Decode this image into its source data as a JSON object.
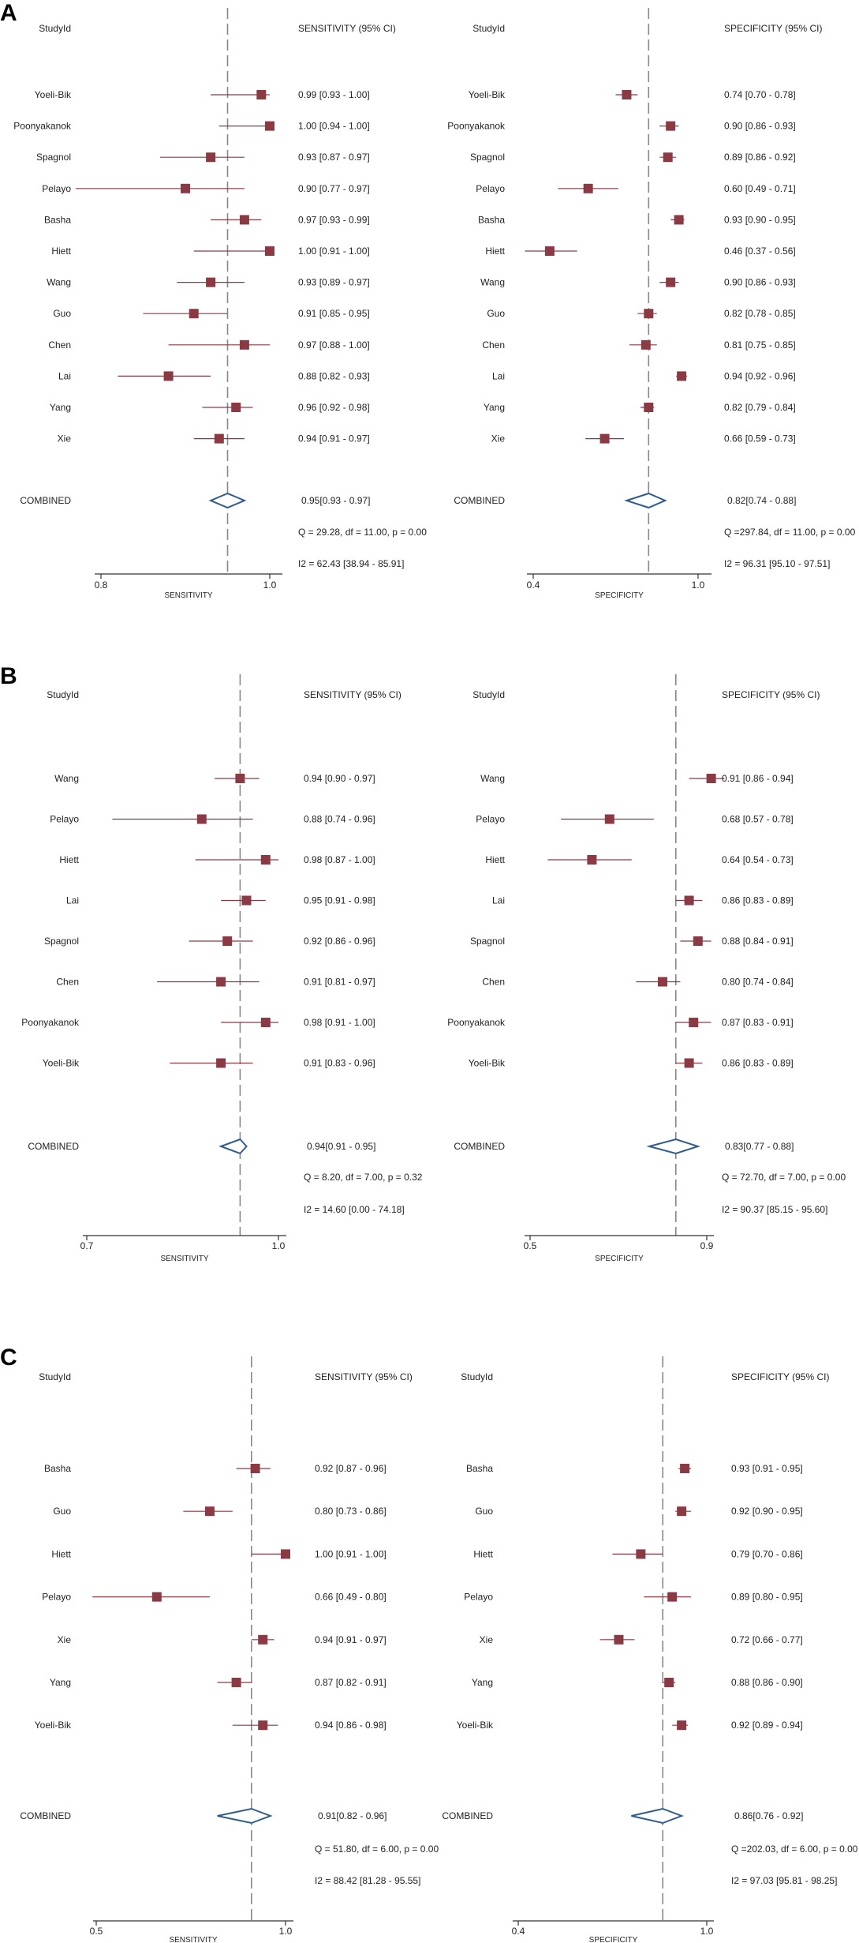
{
  "colors": {
    "marker": "#8b3a44",
    "diamond": "#2f5c8a",
    "ref_line": "#888888",
    "axis": "#333333"
  },
  "chart_data": [
    {
      "panel": "A",
      "study_header": "StudyId",
      "combined_label": "COMBINED",
      "studies": [
        "Yoeli-Bik",
        "Poonyakanok",
        "Spagnol",
        "Pelayo",
        "Basha",
        "Hiett",
        "Wang",
        "Guo",
        "Chen",
        "Lai",
        "Yang",
        "Xie"
      ],
      "sensitivity": {
        "type": "forest",
        "header": "SENSITIVITY (95% CI)",
        "xlabel": "SENSITIVITY",
        "xlim": [
          0.8,
          1.0
        ],
        "ticks": [
          0.8,
          1.0
        ],
        "tick_labels": [
          "0.8",
          "1.0"
        ],
        "estimates": [
          0.99,
          1.0,
          0.93,
          0.9,
          0.97,
          1.0,
          0.93,
          0.91,
          0.97,
          0.88,
          0.96,
          0.94
        ],
        "lower": [
          0.93,
          0.94,
          0.87,
          0.77,
          0.93,
          0.91,
          0.89,
          0.85,
          0.88,
          0.82,
          0.92,
          0.91
        ],
        "upper": [
          1.0,
          1.0,
          0.97,
          0.97,
          0.99,
          1.0,
          0.97,
          0.95,
          1.0,
          0.93,
          0.98,
          0.97
        ],
        "ci_text": [
          "0.99 [0.93 - 1.00]",
          "1.00 [0.94 - 1.00]",
          "0.93 [0.87 - 0.97]",
          "0.90 [0.77 - 0.97]",
          "0.97 [0.93 - 0.99]",
          "1.00 [0.91 - 1.00]",
          "0.93 [0.89 - 0.97]",
          "0.91 [0.85 - 0.95]",
          "0.97 [0.88 - 1.00]",
          "0.88 [0.82 - 0.93]",
          "0.96 [0.92 - 0.98]",
          "0.94 [0.91 - 0.97]"
        ],
        "combined": {
          "est": 0.95,
          "lower": 0.93,
          "upper": 0.97,
          "text": "0.95[0.93 - 0.97]"
        },
        "q_text": "Q = 29.28, df = 11.00, p =  0.00",
        "i2_text": "I2 = 62.43 [38.94 - 85.91]"
      },
      "specificity": {
        "type": "forest",
        "header": "SPECIFICITY (95% CI)",
        "xlabel": "SPECIFICITY",
        "xlim": [
          0.4,
          1.0
        ],
        "ticks": [
          0.4,
          1.0
        ],
        "tick_labels": [
          "0.4",
          "1.0"
        ],
        "estimates": [
          0.74,
          0.9,
          0.89,
          0.6,
          0.93,
          0.46,
          0.9,
          0.82,
          0.81,
          0.94,
          0.82,
          0.66
        ],
        "lower": [
          0.7,
          0.86,
          0.86,
          0.49,
          0.9,
          0.37,
          0.86,
          0.78,
          0.75,
          0.92,
          0.79,
          0.59
        ],
        "upper": [
          0.78,
          0.93,
          0.92,
          0.71,
          0.95,
          0.56,
          0.93,
          0.85,
          0.85,
          0.96,
          0.84,
          0.73
        ],
        "ci_text": [
          "0.74 [0.70 - 0.78]",
          "0.90 [0.86 - 0.93]",
          "0.89 [0.86 - 0.92]",
          "0.60 [0.49 - 0.71]",
          "0.93 [0.90 - 0.95]",
          "0.46 [0.37 - 0.56]",
          "0.90 [0.86 - 0.93]",
          "0.82 [0.78 - 0.85]",
          "0.81 [0.75 - 0.85]",
          "0.94 [0.92 - 0.96]",
          "0.82 [0.79 - 0.84]",
          "0.66 [0.59 - 0.73]"
        ],
        "combined": {
          "est": 0.82,
          "lower": 0.74,
          "upper": 0.88,
          "text": "0.82[0.74 - 0.88]"
        },
        "q_text": "Q =297.84, df = 11.00, p =  0.00",
        "i2_text": "I2 = 96.31 [95.10 - 97.51]"
      }
    },
    {
      "panel": "B",
      "study_header": "StudyId",
      "combined_label": "COMBINED",
      "studies": [
        "Wang",
        "Pelayo",
        "Hiett",
        "Lai",
        "Spagnol",
        "Chen",
        "Poonyakanok",
        "Yoeli-Bik"
      ],
      "sensitivity": {
        "type": "forest",
        "header": "SENSITIVITY (95% CI)",
        "xlabel": "SENSITIVITY",
        "xlim": [
          0.7,
          1.0
        ],
        "ticks": [
          0.7,
          1.0
        ],
        "tick_labels": [
          "0.7",
          "1.0"
        ],
        "estimates": [
          0.94,
          0.88,
          0.98,
          0.95,
          0.92,
          0.91,
          0.98,
          0.91
        ],
        "lower": [
          0.9,
          0.74,
          0.87,
          0.91,
          0.86,
          0.81,
          0.91,
          0.83
        ],
        "upper": [
          0.97,
          0.96,
          1.0,
          0.98,
          0.96,
          0.97,
          1.0,
          0.96
        ],
        "ci_text": [
          "0.94 [0.90 - 0.97]",
          "0.88 [0.74 - 0.96]",
          "0.98 [0.87 - 1.00]",
          "0.95 [0.91 - 0.98]",
          "0.92 [0.86 - 0.96]",
          "0.91 [0.81 - 0.97]",
          "0.98 [0.91 - 1.00]",
          "0.91 [0.83 - 0.96]"
        ],
        "combined": {
          "est": 0.94,
          "lower": 0.91,
          "upper": 0.95,
          "text": "0.94[0.91 - 0.95]"
        },
        "q_text": "Q =  8.20, df = 7.00, p =  0.32",
        "i2_text": "I2 = 14.60 [0.00 - 74.18]"
      },
      "specificity": {
        "type": "forest",
        "header": "SPECIFICITY (95% CI)",
        "xlabel": "SPECIFICITY",
        "xlim": [
          0.5,
          0.9
        ],
        "ticks": [
          0.5,
          0.9
        ],
        "tick_labels": [
          "0.5",
          "0.9"
        ],
        "estimates": [
          0.91,
          0.68,
          0.64,
          0.86,
          0.88,
          0.8,
          0.87,
          0.86
        ],
        "lower": [
          0.86,
          0.57,
          0.54,
          0.83,
          0.84,
          0.74,
          0.83,
          0.83
        ],
        "upper": [
          0.94,
          0.78,
          0.73,
          0.89,
          0.91,
          0.84,
          0.91,
          0.89
        ],
        "ci_text": [
          "0.91 [0.86 - 0.94]",
          "0.68 [0.57 - 0.78]",
          "0.64 [0.54 - 0.73]",
          "0.86 [0.83 - 0.89]",
          "0.88 [0.84 - 0.91]",
          "0.80 [0.74 - 0.84]",
          "0.87 [0.83 - 0.91]",
          "0.86 [0.83 - 0.89]"
        ],
        "combined": {
          "est": 0.83,
          "lower": 0.77,
          "upper": 0.88,
          "text": "0.83[0.77 - 0.88]"
        },
        "q_text": "Q = 72.70, df = 7.00, p =  0.00",
        "i2_text": "I2 = 90.37 [85.15 - 95.60]"
      }
    },
    {
      "panel": "C",
      "study_header": "StudyId",
      "combined_label": "COMBINED",
      "studies": [
        "Basha",
        "Guo",
        "Hiett",
        "Pelayo",
        "Xie",
        "Yang",
        "Yoeli-Bik"
      ],
      "sensitivity": {
        "type": "forest",
        "header": "SENSITIVITY (95% CI)",
        "xlabel": "SENSITIVITY",
        "xlim": [
          0.5,
          1.0
        ],
        "ticks": [
          0.5,
          1.0
        ],
        "tick_labels": [
          "0.5",
          "1.0"
        ],
        "estimates": [
          0.92,
          0.8,
          1.0,
          0.66,
          0.94,
          0.87,
          0.94
        ],
        "lower": [
          0.87,
          0.73,
          0.91,
          0.49,
          0.91,
          0.82,
          0.86
        ],
        "upper": [
          0.96,
          0.86,
          1.0,
          0.8,
          0.97,
          0.91,
          0.98
        ],
        "ci_text": [
          "0.92 [0.87 - 0.96]",
          "0.80 [0.73 - 0.86]",
          "1.00 [0.91 - 1.00]",
          "0.66 [0.49 - 0.80]",
          "0.94 [0.91 - 0.97]",
          "0.87 [0.82 - 0.91]",
          "0.94 [0.86 - 0.98]"
        ],
        "combined": {
          "est": 0.91,
          "lower": 0.82,
          "upper": 0.96,
          "text": "0.91[0.82 - 0.96]"
        },
        "q_text": "Q = 51.80, df = 6.00, p =  0.00",
        "i2_text": "I2 = 88.42 [81.28 - 95.55]"
      },
      "specificity": {
        "type": "forest",
        "header": "SPECIFICITY (95% CI)",
        "xlabel": "SPECIFICITY",
        "xlim": [
          0.4,
          1.0
        ],
        "ticks": [
          0.4,
          1.0
        ],
        "tick_labels": [
          "0.4",
          "1.0"
        ],
        "estimates": [
          0.93,
          0.92,
          0.79,
          0.89,
          0.72,
          0.88,
          0.92
        ],
        "lower": [
          0.91,
          0.9,
          0.7,
          0.8,
          0.66,
          0.86,
          0.89
        ],
        "upper": [
          0.95,
          0.95,
          0.86,
          0.95,
          0.77,
          0.9,
          0.94
        ],
        "ci_text": [
          "0.93 [0.91 - 0.95]",
          "0.92 [0.90 - 0.95]",
          "0.79 [0.70 - 0.86]",
          "0.89 [0.80 - 0.95]",
          "0.72 [0.66 - 0.77]",
          "0.88 [0.86 - 0.90]",
          "0.92 [0.89 - 0.94]"
        ],
        "combined": {
          "est": 0.86,
          "lower": 0.76,
          "upper": 0.92,
          "text": "0.86[0.76 - 0.92]"
        },
        "q_text": "Q =202.03, df = 6.00, p =  0.00",
        "i2_text": "I2 = 97.03 [95.81 - 98.25]"
      }
    }
  ]
}
